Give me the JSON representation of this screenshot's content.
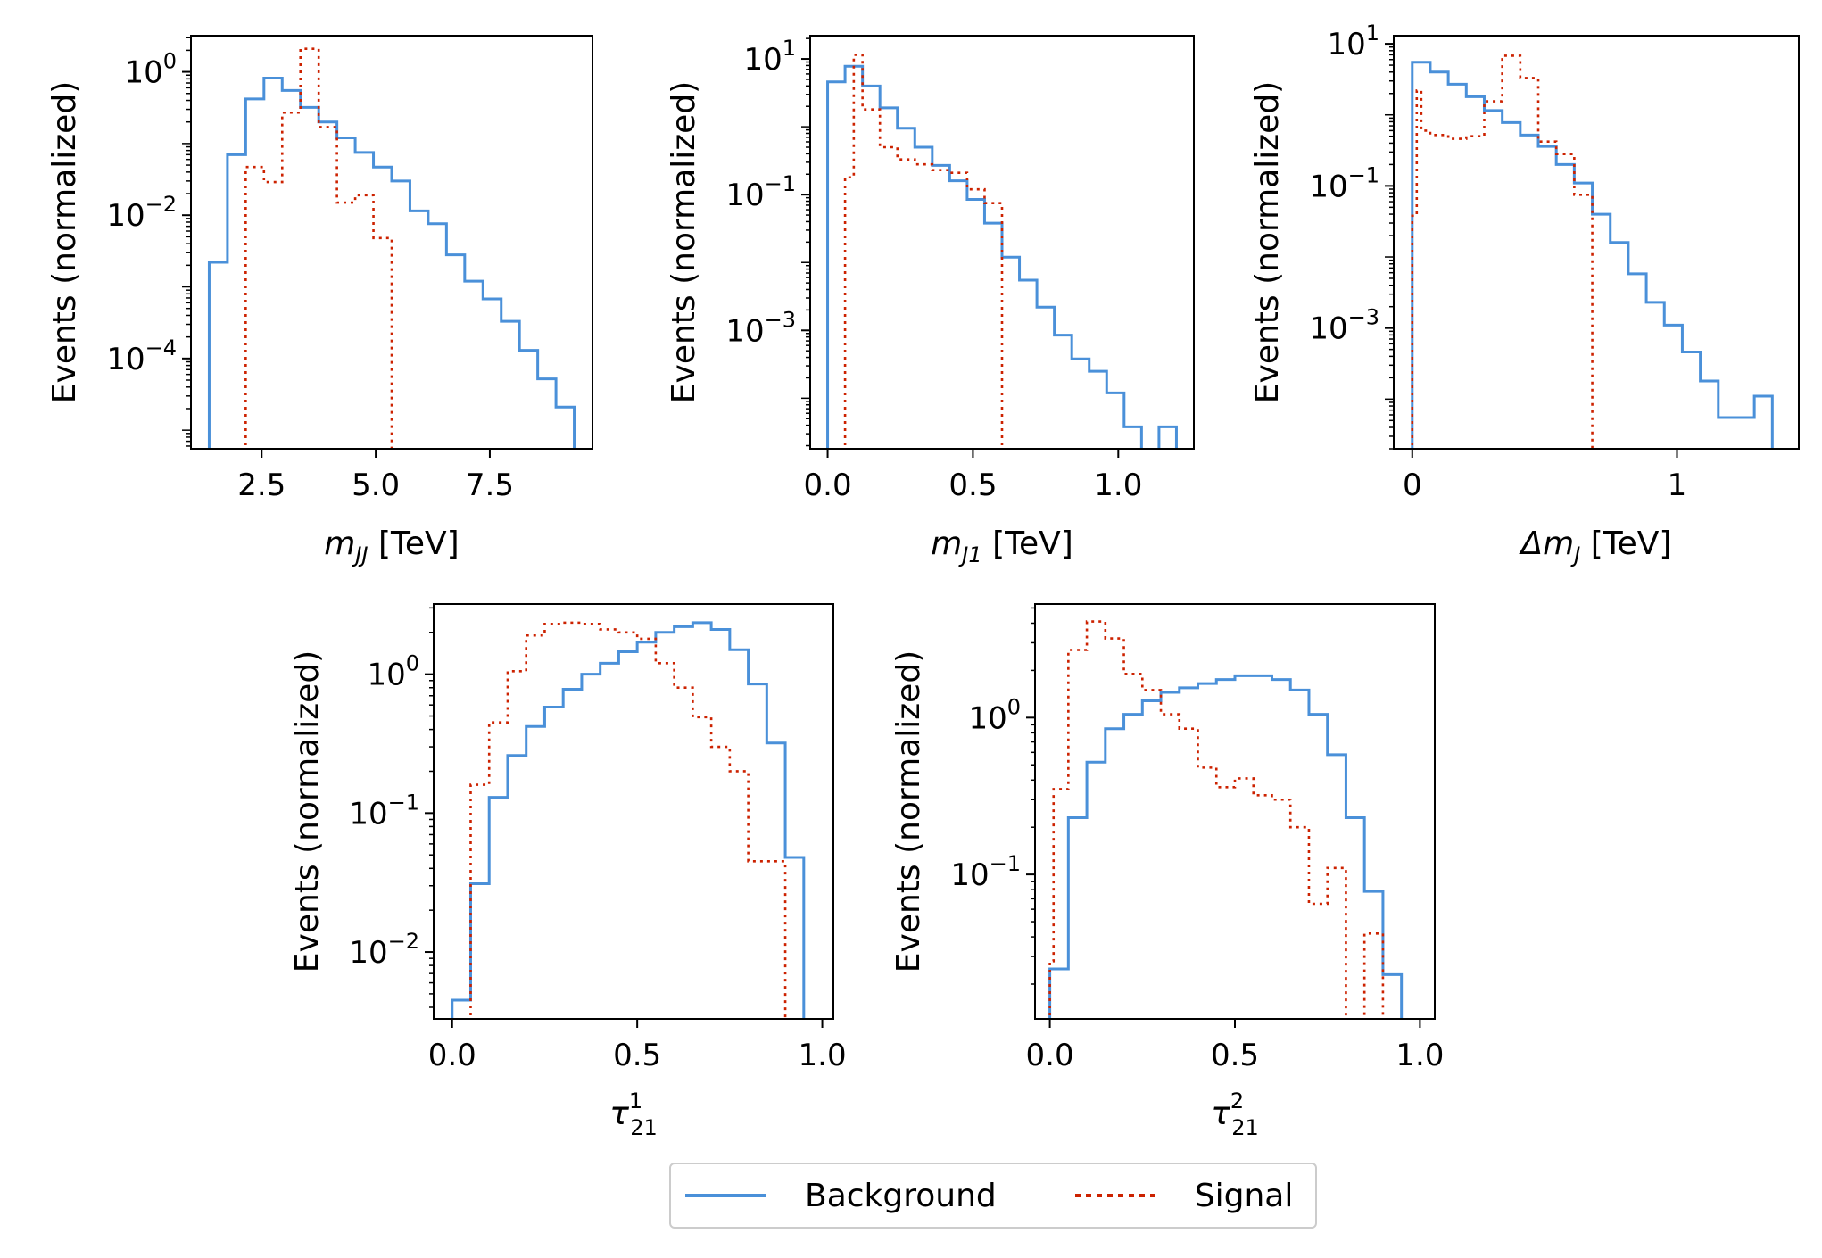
{
  "figure": {
    "colors": {
      "background": "#4a90d9",
      "signal": "#cc2200",
      "axis": "#000000"
    },
    "legend": {
      "background_label": "Background",
      "signal_label": "Signal",
      "placement": "bottom-center"
    }
  },
  "chart_data": [
    {
      "type": "histogram",
      "id": "mjj",
      "xlabel_main": "m",
      "xlabel_sub": "JJ",
      "xlabel_unit": "[TeV]",
      "ylabel": "Events (normalized)",
      "yscale": "log",
      "xlim": [
        0.95,
        9.75
      ],
      "ylim": [
        5.5e-06,
        3.2
      ],
      "xticks": [
        2.5,
        5.0,
        7.5
      ],
      "xtick_labels": [
        "2.5",
        "5.0",
        "7.5"
      ],
      "yticks": [
        {
          "value": 1,
          "base": "10",
          "exp": "0"
        },
        {
          "value": 0.01,
          "base": "10",
          "exp": "−2"
        },
        {
          "value": 0.0001,
          "base": "10",
          "exp": "−4"
        }
      ],
      "series": [
        {
          "name": "Background",
          "role": "background",
          "edges": [
            1.35,
            1.75,
            2.15,
            2.55,
            2.95,
            3.35,
            3.75,
            4.15,
            4.55,
            4.95,
            5.35,
            5.75,
            6.15,
            6.55,
            6.95,
            7.35,
            7.75,
            8.15,
            8.55,
            8.95,
            9.35
          ],
          "values": [
            0.0022,
            0.07,
            0.42,
            0.82,
            0.55,
            0.32,
            0.2,
            0.12,
            0.075,
            0.047,
            0.03,
            0.0115,
            0.0076,
            0.0028,
            0.0012,
            0.00068,
            0.00033,
            0.00013,
            5.2e-05,
            2.1e-05
          ]
        },
        {
          "name": "Signal",
          "role": "signal",
          "edges": [
            2.15,
            2.55,
            2.95,
            3.35,
            3.75,
            4.15,
            4.55,
            4.95,
            5.35
          ],
          "values": [
            0.047,
            0.029,
            0.27,
            2.1,
            0.17,
            0.015,
            0.019,
            0.0048
          ]
        }
      ]
    },
    {
      "type": "histogram",
      "id": "mj1",
      "xlabel_main": "m",
      "xlabel_sub": "J1",
      "xlabel_unit": "[TeV]",
      "ylabel": "Events (normalized)",
      "yscale": "log",
      "xlim": [
        -0.06,
        1.26
      ],
      "ylim": [
        1.8e-05,
        22
      ],
      "xticks": [
        0.0,
        0.5,
        1.0
      ],
      "xtick_labels": [
        "0.0",
        "0.5",
        "1.0"
      ],
      "yticks": [
        {
          "value": 10,
          "base": "10",
          "exp": "1"
        },
        {
          "value": 0.1,
          "base": "10",
          "exp": "−1"
        },
        {
          "value": 0.001,
          "base": "10",
          "exp": "−3"
        }
      ],
      "series": [
        {
          "name": "Background",
          "role": "background",
          "edges": [
            0.0,
            0.06,
            0.12,
            0.18,
            0.24,
            0.3,
            0.36,
            0.42,
            0.48,
            0.54,
            0.6,
            0.66,
            0.72,
            0.78,
            0.84,
            0.9,
            0.96,
            1.02,
            1.08,
            1.14,
            1.2
          ],
          "values": [
            4.6,
            7.8,
            4.0,
            1.9,
            0.95,
            0.5,
            0.27,
            0.16,
            0.085,
            0.038,
            0.012,
            0.0055,
            0.0022,
            0.00085,
            0.00038,
            0.00025,
            0.00012,
            3.8e-05,
            1.2e-05,
            3.8e-05
          ]
        },
        {
          "name": "Signal",
          "role": "signal",
          "edges": [
            0.06,
            0.09,
            0.12,
            0.18,
            0.24,
            0.3,
            0.36,
            0.42,
            0.48,
            0.54,
            0.6
          ],
          "values": [
            0.18,
            11.5,
            1.8,
            0.5,
            0.33,
            0.28,
            0.23,
            0.21,
            0.12,
            0.075
          ]
        }
      ]
    },
    {
      "type": "histogram",
      "id": "dmj",
      "xlabel_main": "Δm",
      "xlabel_sub": "J",
      "xlabel_unit": "[TeV]",
      "ylabel": "Events (normalized)",
      "yscale": "log",
      "xlim": [
        -0.07,
        1.46
      ],
      "ylim": [
        2e-05,
        13
      ],
      "xticks": [
        0,
        1
      ],
      "xtick_labels": [
        "0",
        "1"
      ],
      "yticks": [
        {
          "value": 10,
          "base": "10",
          "exp": "1"
        },
        {
          "value": 0.1,
          "base": "10",
          "exp": "−1"
        },
        {
          "value": 0.001,
          "base": "10",
          "exp": "−3"
        }
      ],
      "series": [
        {
          "name": "Background",
          "role": "background",
          "edges": [
            0.0,
            0.068,
            0.136,
            0.204,
            0.272,
            0.34,
            0.408,
            0.476,
            0.544,
            0.612,
            0.68,
            0.748,
            0.816,
            0.884,
            0.952,
            1.02,
            1.088,
            1.156,
            1.224,
            1.292,
            1.36
          ],
          "values": [
            5.5,
            4.0,
            2.7,
            1.8,
            1.15,
            0.78,
            0.52,
            0.36,
            0.2,
            0.11,
            0.04,
            0.016,
            0.0058,
            0.0023,
            0.0011,
            0.00046,
            0.00018,
            5.5e-05,
            5.5e-05,
            0.00011
          ]
        },
        {
          "name": "Signal",
          "role": "signal",
          "edges": [
            0.0,
            0.017,
            0.034,
            0.068,
            0.136,
            0.204,
            0.272,
            0.34,
            0.408,
            0.476,
            0.544,
            0.612,
            0.68
          ],
          "values": [
            0.038,
            2.2,
            0.6,
            0.52,
            0.46,
            0.5,
            1.55,
            6.8,
            3.3,
            0.42,
            0.28,
            0.075
          ]
        }
      ]
    },
    {
      "type": "histogram",
      "id": "tau1",
      "xlabel_main": "τ",
      "xlabel_sub": "21",
      "xlabel_sup": "1",
      "xlabel_unit": "",
      "ylabel": "Events (normalized)",
      "yscale": "log",
      "xlim": [
        -0.05,
        1.03
      ],
      "ylim": [
        0.0033,
        3.2
      ],
      "xticks": [
        0.0,
        0.5,
        1.0
      ],
      "xtick_labels": [
        "0.0",
        "0.5",
        "1.0"
      ],
      "yticks": [
        {
          "value": 1,
          "base": "10",
          "exp": "0"
        },
        {
          "value": 0.1,
          "base": "10",
          "exp": "−1"
        },
        {
          "value": 0.01,
          "base": "10",
          "exp": "−2"
        }
      ],
      "series": [
        {
          "name": "Background",
          "role": "background",
          "edges": [
            0.0,
            0.05,
            0.1,
            0.15,
            0.2,
            0.25,
            0.3,
            0.35,
            0.4,
            0.45,
            0.5,
            0.55,
            0.6,
            0.65,
            0.7,
            0.75,
            0.8,
            0.85,
            0.9,
            0.95,
            1.0
          ],
          "values": [
            0.0045,
            0.031,
            0.13,
            0.26,
            0.42,
            0.58,
            0.78,
            1.0,
            1.2,
            1.45,
            1.7,
            2.0,
            2.2,
            2.35,
            2.1,
            1.5,
            0.85,
            0.32,
            0.048,
            0.0
          ]
        },
        {
          "name": "Signal",
          "role": "signal",
          "edges": [
            0.05,
            0.1,
            0.15,
            0.2,
            0.25,
            0.3,
            0.35,
            0.4,
            0.45,
            0.5,
            0.55,
            0.6,
            0.65,
            0.7,
            0.75,
            0.8,
            0.85,
            0.9
          ],
          "values": [
            0.16,
            0.45,
            1.05,
            1.9,
            2.3,
            2.35,
            2.3,
            2.1,
            2.0,
            1.8,
            1.2,
            0.8,
            0.49,
            0.3,
            0.2,
            0.045,
            0.045
          ]
        }
      ]
    },
    {
      "type": "histogram",
      "id": "tau2",
      "xlabel_main": "τ",
      "xlabel_sub": "21",
      "xlabel_sup": "2",
      "xlabel_unit": "",
      "ylabel": "Events (normalized)",
      "yscale": "log",
      "xlim": [
        -0.04,
        1.04
      ],
      "ylim": [
        0.012,
        5.3
      ],
      "xticks": [
        0.0,
        0.5,
        1.0
      ],
      "xtick_labels": [
        "0.0",
        "0.5",
        "1.0"
      ],
      "yticks": [
        {
          "value": 1,
          "base": "10",
          "exp": "0"
        },
        {
          "value": 0.1,
          "base": "10",
          "exp": "−1"
        }
      ],
      "series": [
        {
          "name": "Background",
          "role": "background",
          "edges": [
            0.0,
            0.05,
            0.1,
            0.15,
            0.2,
            0.25,
            0.3,
            0.35,
            0.4,
            0.45,
            0.5,
            0.55,
            0.6,
            0.65,
            0.7,
            0.75,
            0.8,
            0.85,
            0.9,
            0.95,
            1.0
          ],
          "values": [
            0.025,
            0.23,
            0.52,
            0.85,
            1.05,
            1.28,
            1.45,
            1.55,
            1.65,
            1.75,
            1.85,
            1.85,
            1.75,
            1.5,
            1.05,
            0.58,
            0.23,
            0.078,
            0.023,
            0.0
          ]
        },
        {
          "name": "Signal",
          "role": "signal",
          "edges": [
            0.0,
            0.01,
            0.05,
            0.1,
            0.15,
            0.2,
            0.25,
            0.3,
            0.35,
            0.4,
            0.45,
            0.5,
            0.55,
            0.6,
            0.65,
            0.7,
            0.75,
            0.8,
            0.85,
            0.9
          ],
          "values": [
            0.028,
            0.35,
            2.7,
            4.1,
            3.2,
            1.9,
            1.5,
            1.05,
            0.85,
            0.48,
            0.36,
            0.41,
            0.32,
            0.3,
            0.2,
            0.065,
            0.11,
            0.0,
            0.042
          ]
        }
      ]
    }
  ]
}
